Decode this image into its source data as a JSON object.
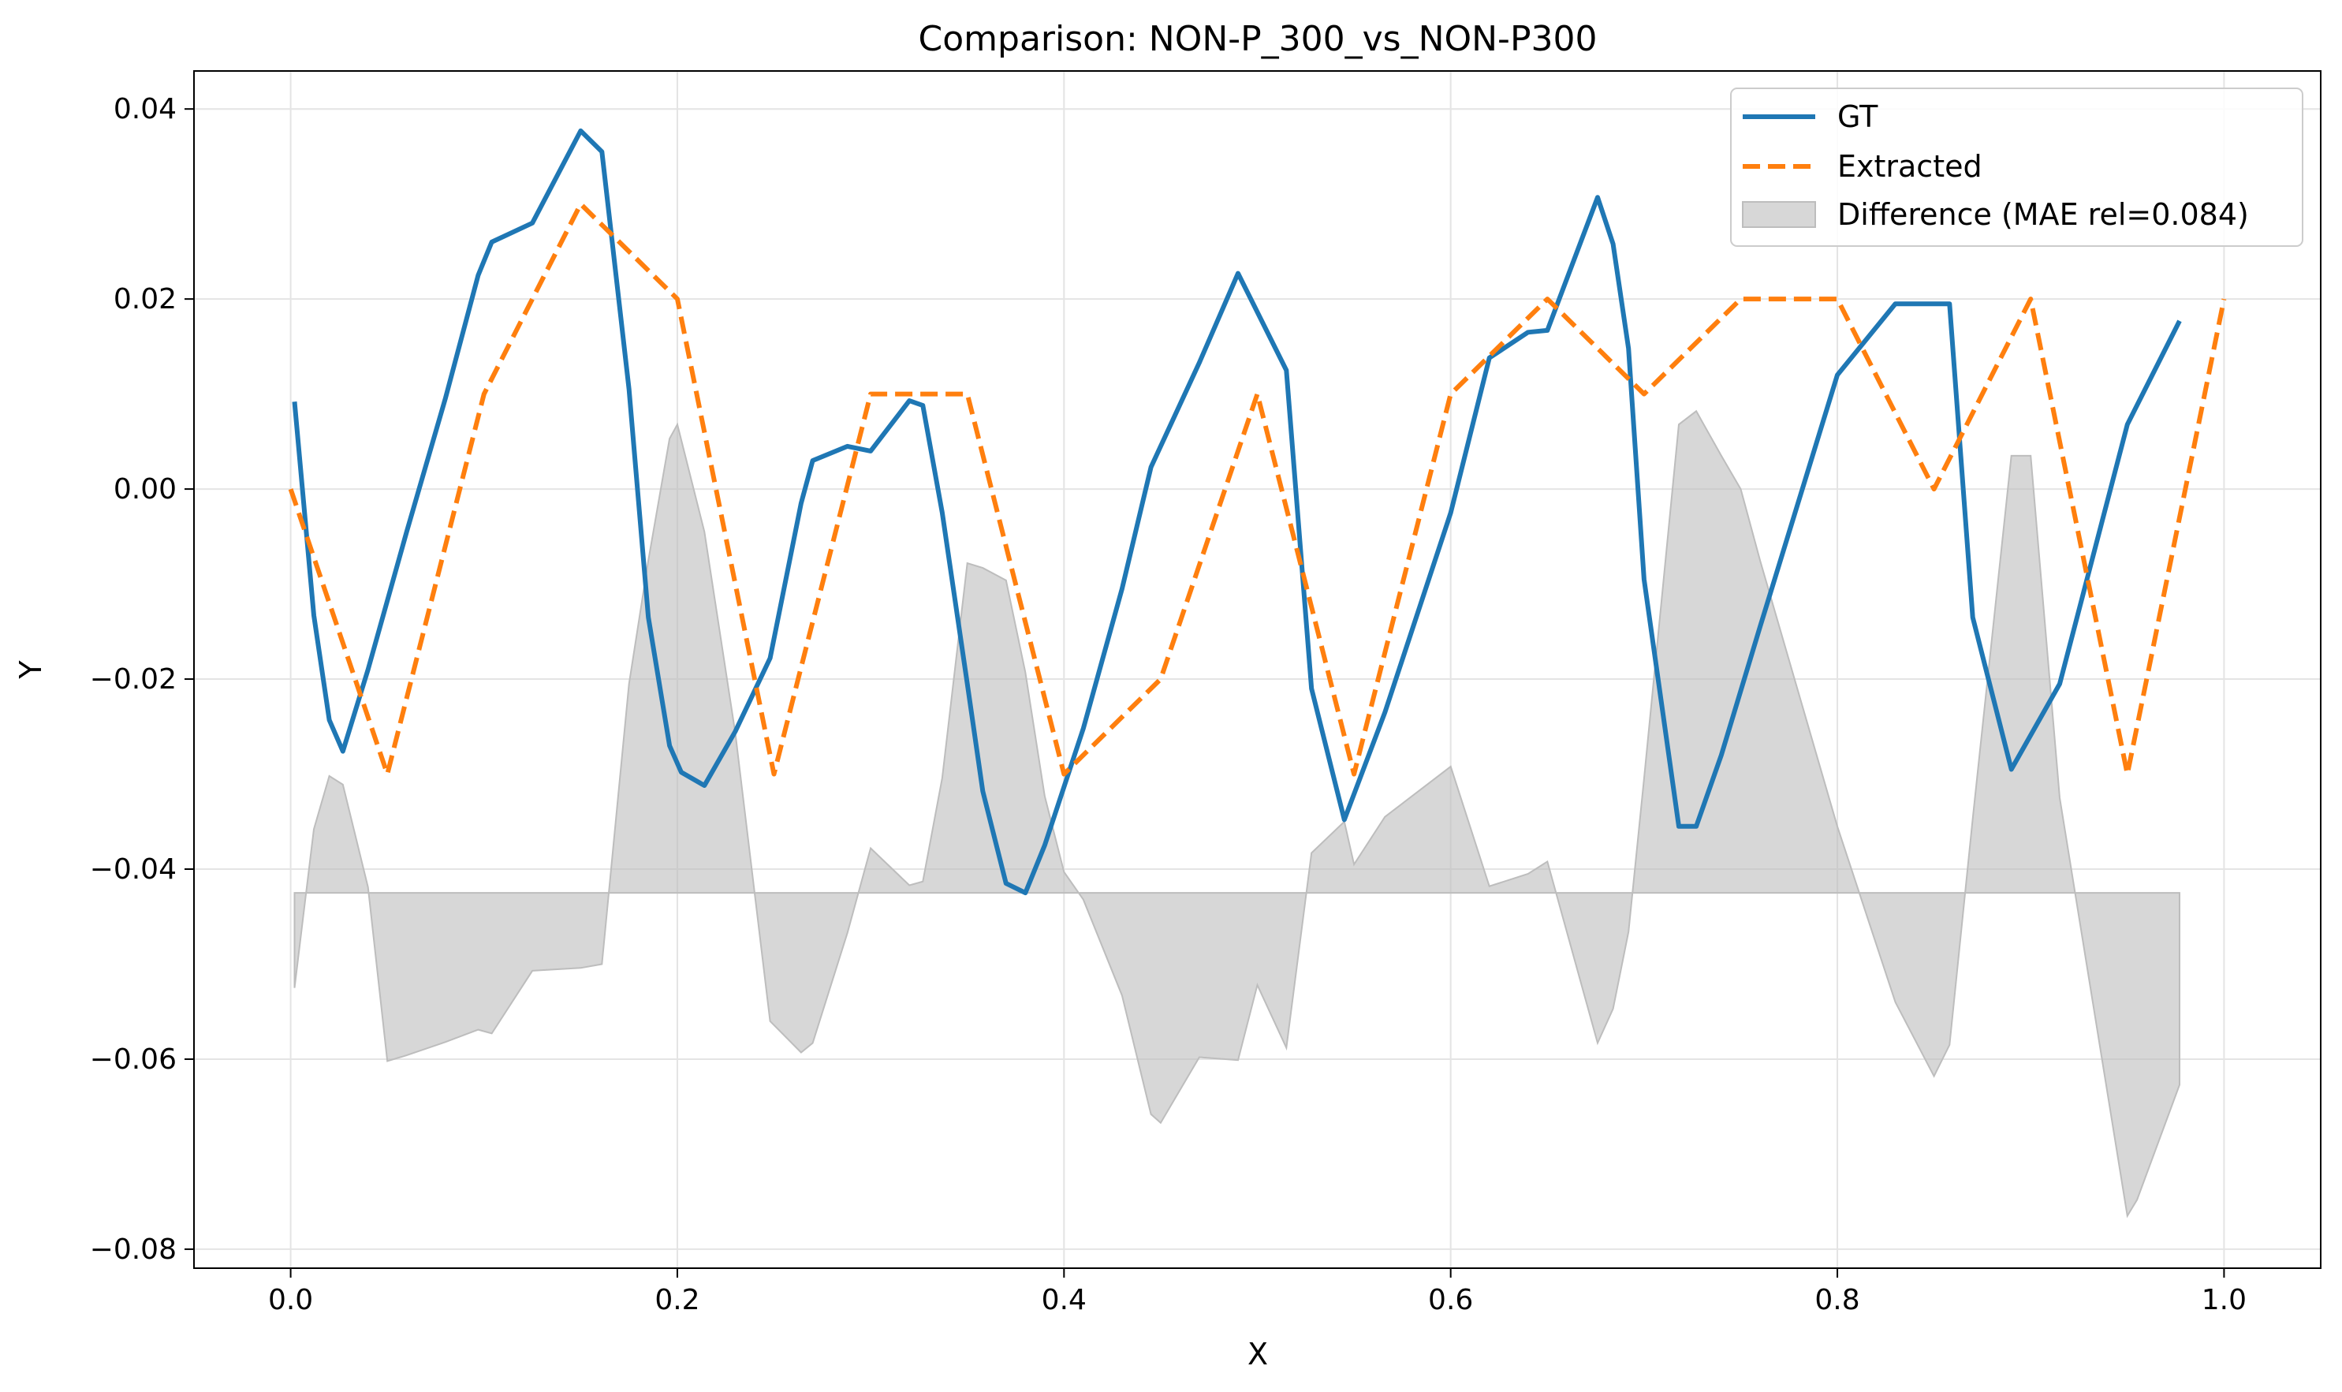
{
  "chart_data": {
    "type": "line",
    "title": "Comparison: NON-P_300_vs_NON-P300",
    "xlabel": "X",
    "ylabel": "Y",
    "xlim": [
      -0.05,
      1.05
    ],
    "ylim": [
      -0.082,
      0.044
    ],
    "xticks": [
      0.0,
      0.2,
      0.4,
      0.6,
      0.8,
      1.0
    ],
    "xtick_labels": [
      "0.0",
      "0.2",
      "0.4",
      "0.6",
      "0.8",
      "1.0"
    ],
    "yticks": [
      -0.08,
      -0.06,
      -0.04,
      -0.02,
      0.0,
      0.02,
      0.04
    ],
    "ytick_labels": [
      "−0.08",
      "−0.06",
      "−0.04",
      "−0.02",
      "0.00",
      "0.02",
      "0.04"
    ],
    "grid": true,
    "legend_position": "top-right",
    "colors": {
      "gt": "#1f77b4",
      "extracted": "#ff7f0e",
      "difference": "#bdbdbd"
    },
    "series": [
      {
        "name": "GT",
        "style": "solid",
        "x": [
          0.002,
          0.012,
          0.02,
          0.027,
          0.04,
          0.06,
          0.08,
          0.097,
          0.104,
          0.125,
          0.15,
          0.161,
          0.175,
          0.185,
          0.196,
          0.202,
          0.214,
          0.23,
          0.248,
          0.264,
          0.27,
          0.288,
          0.3,
          0.32,
          0.327,
          0.337,
          0.35,
          0.358,
          0.37,
          0.38,
          0.39,
          0.41,
          0.43,
          0.445,
          0.47,
          0.49,
          0.515,
          0.528,
          0.545,
          0.566,
          0.6,
          0.62,
          0.64,
          0.65,
          0.676,
          0.684,
          0.692,
          0.7,
          0.718,
          0.727,
          0.74,
          0.76,
          0.8,
          0.83,
          0.858,
          0.87,
          0.89,
          0.915,
          0.95,
          0.977
        ],
        "y": [
          0.0092,
          -0.0133,
          -0.0243,
          -0.0276,
          -0.019,
          -0.0045,
          0.0095,
          0.0225,
          0.026,
          0.028,
          0.0377,
          0.0355,
          0.0105,
          -0.0135,
          -0.027,
          -0.0298,
          -0.0312,
          -0.0255,
          -0.0178,
          -0.0015,
          0.003,
          0.0045,
          0.004,
          0.0093,
          0.0088,
          -0.0025,
          -0.0205,
          -0.0318,
          -0.0415,
          -0.0425,
          -0.0375,
          -0.0252,
          -0.0105,
          0.0023,
          0.0133,
          0.0227,
          0.0125,
          -0.021,
          -0.0348,
          -0.0235,
          -0.0025,
          0.0138,
          0.0165,
          0.0167,
          0.0307,
          0.0258,
          0.0148,
          -0.0095,
          -0.0355,
          -0.0355,
          -0.028,
          -0.0145,
          0.012,
          0.0195,
          0.0195,
          -0.0135,
          -0.0295,
          -0.0205,
          0.0068,
          0.0177
        ]
      },
      {
        "name": "Extracted",
        "style": "dashed",
        "x": [
          0.0,
          0.05,
          0.1,
          0.15,
          0.2,
          0.25,
          0.3,
          0.35,
          0.4,
          0.45,
          0.5,
          0.55,
          0.6,
          0.65,
          0.7,
          0.75,
          0.8,
          0.85,
          0.9,
          0.95,
          1.0
        ],
        "y": [
          0.0,
          -0.03,
          0.01,
          0.03,
          0.02,
          -0.03,
          0.01,
          0.01,
          -0.03,
          -0.02,
          0.01,
          -0.03,
          0.01,
          0.02,
          0.01,
          0.02,
          0.02,
          0.0,
          0.02,
          -0.03,
          0.02
        ]
      },
      {
        "name": "Difference (MAE rel=0.084)",
        "style": "fill",
        "baseline": -0.0425,
        "x": [
          0.002,
          0.012,
          0.02,
          0.027,
          0.04,
          0.05,
          0.06,
          0.08,
          0.097,
          0.104,
          0.125,
          0.15,
          0.161,
          0.175,
          0.185,
          0.196,
          0.2,
          0.214,
          0.23,
          0.248,
          0.264,
          0.27,
          0.288,
          0.3,
          0.32,
          0.327,
          0.337,
          0.35,
          0.358,
          0.37,
          0.38,
          0.39,
          0.4,
          0.41,
          0.43,
          0.445,
          0.45,
          0.47,
          0.49,
          0.5,
          0.515,
          0.528,
          0.545,
          0.55,
          0.566,
          0.6,
          0.62,
          0.64,
          0.65,
          0.676,
          0.684,
          0.692,
          0.7,
          0.718,
          0.727,
          0.74,
          0.75,
          0.76,
          0.8,
          0.83,
          0.85,
          0.858,
          0.87,
          0.89,
          0.9,
          0.915,
          0.95,
          0.955,
          0.977
        ],
        "y": [
          -0.0525,
          -0.0358,
          -0.0302,
          -0.0311,
          -0.0419,
          -0.0602,
          -0.0596,
          -0.0582,
          -0.0569,
          -0.0573,
          -0.0507,
          -0.0504,
          -0.05,
          -0.0205,
          -0.0075,
          0.0053,
          0.0068,
          -0.0045,
          -0.0257,
          -0.056,
          -0.0593,
          -0.0583,
          -0.0467,
          -0.0378,
          -0.0417,
          -0.0413,
          -0.0304,
          -0.0078,
          -0.0083,
          -0.0096,
          -0.0193,
          -0.0323,
          -0.0403,
          -0.0432,
          -0.0533,
          -0.0658,
          -0.0667,
          -0.0598,
          -0.0601,
          -0.0522,
          -0.0588,
          -0.0383,
          -0.035,
          -0.0395,
          -0.0345,
          -0.0292,
          -0.0418,
          -0.0405,
          -0.0392,
          -0.0583,
          -0.0547,
          -0.0466,
          -0.0305,
          0.0068,
          0.0082,
          0.0035,
          0.0,
          -0.0075,
          -0.0355,
          -0.054,
          -0.0618,
          -0.0585,
          -0.0347,
          0.0035,
          0.0035,
          -0.0325,
          -0.0765,
          -0.0748,
          -0.0627
        ]
      }
    ]
  }
}
